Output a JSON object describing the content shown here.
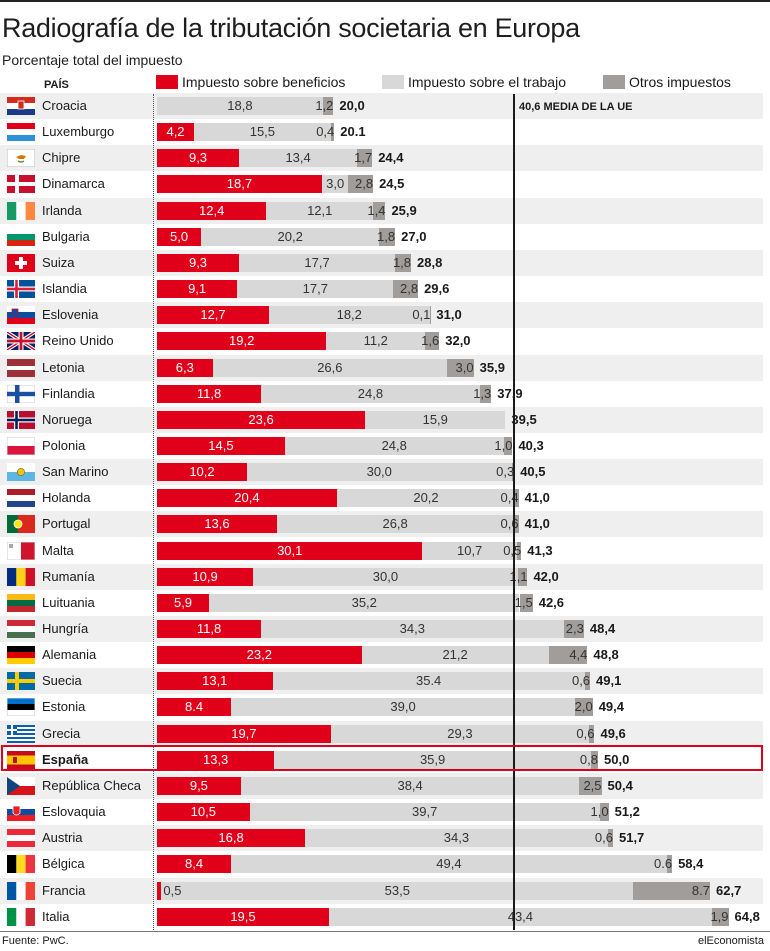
{
  "title": "Radiografía de la tributación societaria en Europa",
  "subtitle": "Porcentaje total del impuesto",
  "column_header": "PAÍS",
  "legend": [
    {
      "label": "Impuesto sobre beneficios",
      "color": "#e1001a"
    },
    {
      "label": "Impuesto sobre el trabajo",
      "color": "#d8d8d8"
    },
    {
      "label": "Otros impuestos",
      "color": "#a19d9a"
    }
  ],
  "average_label": "40,6 MEDIA DE LA UE",
  "source": "Fuente: PwC.",
  "brand": "elEconomista",
  "chart_data": {
    "type": "bar",
    "orientation": "horizontal",
    "stacked": true,
    "title": "Radiografía de la tributación societaria en Europa",
    "subtitle": "Porcentaje total del impuesto",
    "reference_line": {
      "value": 40.6,
      "label": "40,6 MEDIA DE LA UE"
    },
    "highlighted": "España",
    "categories": [
      "Croacia",
      "Luxemburgo",
      "Chipre",
      "Dinamarca",
      "Irlanda",
      "Bulgaria",
      "Suiza",
      "Islandia",
      "Eslovenia",
      "Reino Unido",
      "Letonia",
      "Finlandia",
      "Noruega",
      "Polonia",
      "San Marino",
      "Holanda",
      "Portugal",
      "Malta",
      "Rumanía",
      "Luituania",
      "Hungría",
      "Alemania",
      "Suecia",
      "Estonia",
      "Grecia",
      "España",
      "República Checa",
      "Eslovaquia",
      "Austria",
      "Bélgica",
      "Francia",
      "Italia"
    ],
    "series": [
      {
        "name": "Impuesto sobre beneficios",
        "color": "#e1001a",
        "values": [
          0,
          4.2,
          9.3,
          18.7,
          12.4,
          5.0,
          9.3,
          9.1,
          12.7,
          19.2,
          6.3,
          11.8,
          23.6,
          14.5,
          10.2,
          20.4,
          13.6,
          30.1,
          10.9,
          5.9,
          11.8,
          23.2,
          13.1,
          8.4,
          19.7,
          13.3,
          9.5,
          10.5,
          16.8,
          8.4,
          0.5,
          19.5
        ],
        "labels": [
          "",
          "4,2",
          "9,3",
          "18,7",
          "12,4",
          "5,0",
          "9,3",
          "9,1",
          "12,7",
          "19,2",
          "6,3",
          "11,8",
          "23,6",
          "14,5",
          "10,2",
          "20,4",
          "13,6",
          "30,1",
          "10,9",
          "5,9",
          "11,8",
          "23,2",
          "13,1",
          "8.4",
          "19,7",
          "13,3",
          "9,5",
          "10,5",
          "16,8",
          "8,4",
          "0,5",
          "19,5"
        ]
      },
      {
        "name": "Impuesto sobre el trabajo",
        "color": "#d8d8d8",
        "values": [
          18.8,
          15.5,
          13.4,
          3.0,
          12.1,
          20.2,
          17.7,
          17.7,
          18.2,
          11.2,
          26.6,
          24.8,
          15.9,
          24.8,
          30.0,
          20.2,
          26.8,
          10.7,
          30.0,
          35.2,
          34.3,
          21.2,
          35.4,
          39.0,
          29.3,
          35.9,
          38.4,
          39.7,
          34.3,
          49.4,
          53.5,
          43.4
        ],
        "labels": [
          "18,8",
          "15,5",
          "13,4",
          "3,0",
          "12,1",
          "20,2",
          "17,7",
          "17,7",
          "18,2",
          "11,2",
          "26,6",
          "24,8",
          "15,9",
          "24,8",
          "30,0",
          "20,2",
          "26,8",
          "10,7",
          "30,0",
          "35,2",
          "34,3",
          "21,2",
          "35.4",
          "39,0",
          "29,3",
          "35,9",
          "38,4",
          "39,7",
          "34,3",
          "49,4",
          "53,5",
          "43,4"
        ]
      },
      {
        "name": "Otros impuestos",
        "color": "#a19d9a",
        "values": [
          1.2,
          0.4,
          1.7,
          2.8,
          1.4,
          1.8,
          1.8,
          2.8,
          0.1,
          1.6,
          3.0,
          1.3,
          0,
          1.0,
          0.3,
          0.4,
          0.6,
          0.5,
          1.1,
          1.5,
          2.3,
          4.4,
          0.6,
          2.0,
          0.6,
          0.8,
          2.5,
          1.0,
          0.6,
          0.6,
          8.7,
          1.9
        ],
        "labels": [
          "1,2",
          "0,4",
          "1,7",
          "2,8",
          "1,4",
          "1,8",
          "1,8",
          "2,8",
          "0,1",
          "1,6",
          "3,0",
          "1,3",
          "",
          "1,0",
          "0,3",
          "0,4",
          "0,6",
          "0,5",
          "1,1",
          "1,5",
          "2,3",
          "4,4",
          "0,6",
          "2,0",
          "0,6",
          "0,8",
          "2,5",
          "1,0",
          "0,6",
          "0.6",
          "8.7",
          "1,9"
        ]
      }
    ],
    "totals": [
      20.0,
      20.1,
      24.4,
      24.5,
      25.9,
      27.0,
      28.8,
      29.6,
      31.0,
      32.0,
      35.9,
      37.9,
      39.5,
      40.3,
      40.5,
      41.0,
      41.0,
      41.3,
      42.0,
      42.6,
      48.4,
      48.8,
      49.1,
      49.4,
      49.6,
      50.0,
      50.4,
      51.2,
      51.7,
      58.4,
      62.7,
      64.8
    ],
    "total_labels": [
      "20,0",
      "20.1",
      "24,4",
      "24,5",
      "25,9",
      "27,0",
      "28,8",
      "29,6",
      "31,0",
      "32,0",
      "35,9",
      "37,9",
      "39,5",
      "40,3",
      "40,5",
      "41,0",
      "41,0",
      "41,3",
      "42,0",
      "42,6",
      "48,4",
      "48,8",
      "49,1",
      "49,4",
      "49,6",
      "50,0",
      "50,4",
      "51,2",
      "51,7",
      "58,4",
      "62,7",
      "64,8"
    ],
    "flags": [
      "croatia-flag",
      "luxembourg-flag",
      "cyprus-flag",
      "denmark-flag",
      "ireland-flag",
      "bulgaria-flag",
      "switzerland-flag",
      "iceland-flag",
      "slovenia-flag",
      "uk-flag",
      "latvia-flag",
      "finland-flag",
      "norway-flag",
      "poland-flag",
      "san-marino-flag",
      "netherlands-flag",
      "portugal-flag",
      "malta-flag",
      "romania-flag",
      "lithuania-flag",
      "hungary-flag",
      "germany-flag",
      "sweden-flag",
      "estonia-flag",
      "greece-flag",
      "spain-flag",
      "czech-flag",
      "slovakia-flag",
      "austria-flag",
      "belgium-flag",
      "france-flag",
      "italy-flag"
    ],
    "xlim": [
      0,
      67
    ]
  }
}
